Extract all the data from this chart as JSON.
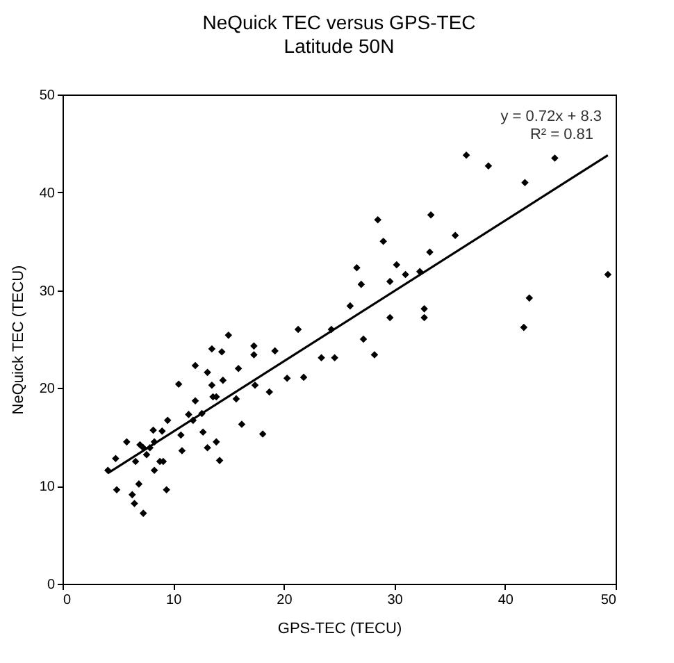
{
  "chart_data": {
    "type": "scatter",
    "title": "NeQuick TEC versus GPS-TEC",
    "subtitle": "Latitude 50N",
    "xlabel": "GPS-TEC (TECU)",
    "ylabel": "NeQuick TEC (TECU)",
    "annotations": [
      "y = 0.72x + 8.3",
      "R² = 0.81"
    ],
    "xlim": [
      0,
      50
    ],
    "ylim": [
      0,
      50
    ],
    "xticks": [
      0,
      10,
      20,
      30,
      40,
      50
    ],
    "yticks": [
      0,
      10,
      20,
      30,
      40,
      50
    ],
    "grid": false,
    "marker": "diamond",
    "x": [
      36.5,
      38.5,
      44.5,
      41.8,
      28.5,
      33.3,
      29.0,
      35.5,
      26.6,
      27.0,
      30.2,
      29.6,
      31.0,
      32.3,
      33.2,
      49.3,
      42.2,
      41.7,
      32.7,
      32.7,
      29.6,
      26.0,
      27.2,
      28.2,
      24.6,
      24.3,
      23.4,
      21.3,
      21.8,
      20.3,
      19.2,
      18.7,
      18.1,
      17.3,
      17.3,
      17.4,
      15.9,
      15.7,
      16.2,
      15.0,
      14.4,
      13.5,
      13.1,
      12.0,
      13.5,
      14.5,
      13.6,
      13.9,
      12.0,
      12.7,
      13.9,
      13.1,
      14.2,
      10.5,
      10.7,
      10.8,
      9.5,
      9.0,
      8.2,
      11.8,
      12.6,
      11.4,
      7.9,
      7.3,
      8.3,
      7.0,
      7.6,
      9.1,
      8.8,
      8.3,
      6.6,
      5.8,
      4.8,
      4.1,
      4.9,
      6.9,
      6.3,
      6.5,
      7.3,
      9.4
    ],
    "series": [
      {
        "color": "#000000",
        "values": [
          43.8,
          42.7,
          43.5,
          41.0,
          37.2,
          37.7,
          35.0,
          35.6,
          32.3,
          30.6,
          32.6,
          30.9,
          31.6,
          31.9,
          33.9,
          31.6,
          29.2,
          26.2,
          28.1,
          27.2,
          27.2,
          28.4,
          25.0,
          23.4,
          23.1,
          26.0,
          23.1,
          26.0,
          21.1,
          21.0,
          23.8,
          19.6,
          15.3,
          24.3,
          23.4,
          20.3,
          22.0,
          18.9,
          16.3,
          25.4,
          23.7,
          24.0,
          21.6,
          22.3,
          20.3,
          20.8,
          19.1,
          19.1,
          18.7,
          15.5,
          14.5,
          13.9,
          12.6,
          20.4,
          15.2,
          13.6,
          16.7,
          15.6,
          15.7,
          16.7,
          17.4,
          17.3,
          13.9,
          13.9,
          14.5,
          14.2,
          13.2,
          12.5,
          12.5,
          11.6,
          12.5,
          14.5,
          12.8,
          11.6,
          9.6,
          10.2,
          9.1,
          8.2,
          7.2,
          9.6
        ]
      },
      {
        "type": "line",
        "marker": "none",
        "color": "#000000",
        "x": [
          4.1,
          49.3
        ],
        "values": [
          11.3,
          43.8
        ]
      }
    ]
  }
}
